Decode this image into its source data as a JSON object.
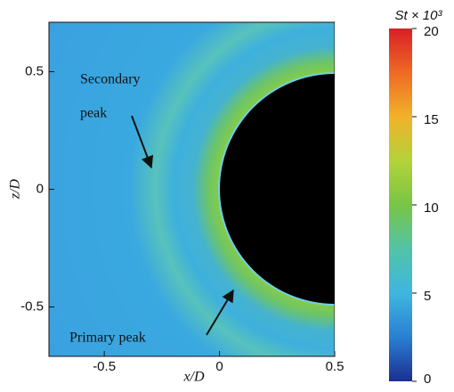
{
  "chart_data": {
    "type": "contour",
    "xlabel": "x/D",
    "ylabel": "z/D",
    "xlim": [
      -0.74,
      0.5
    ],
    "xticks": [
      -0.5,
      0,
      0.5
    ],
    "ylim": [
      -0.71,
      0.71
    ],
    "yticks": [
      -0.5,
      0,
      0.5
    ],
    "colorbar": {
      "label": "St × 10³",
      "lim": [
        0,
        20
      ],
      "ticks": [
        0,
        5,
        10,
        15,
        20
      ],
      "colormap": [
        "#1b2f8f",
        "#2a7fd4",
        "#3fb6e0",
        "#52c3a8",
        "#78c545",
        "#b4d23a",
        "#f2b22a",
        "#ee6a24",
        "#d81f26"
      ]
    },
    "annotations": [
      "Secondary",
      "peak",
      "Primary peak"
    ]
  }
}
